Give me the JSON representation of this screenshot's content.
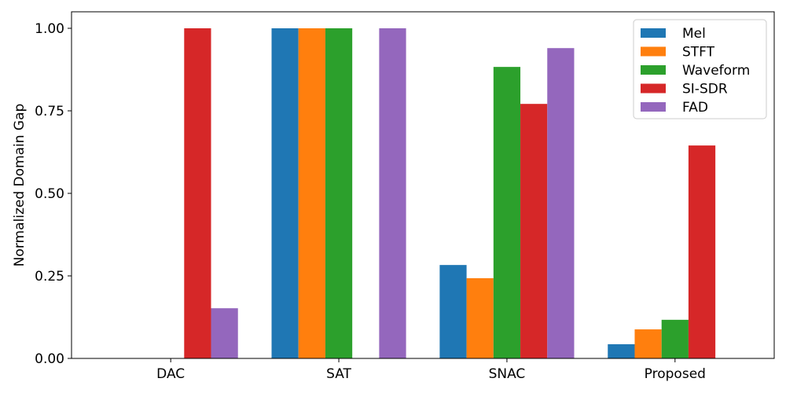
{
  "chart_data": {
    "type": "bar",
    "title": "",
    "xlabel": "",
    "ylabel": "Normalized Domain Gap",
    "ylim": [
      0,
      1.05
    ],
    "yticks": [
      0.0,
      0.25,
      0.5,
      0.75,
      1.0
    ],
    "ytick_labels": [
      "0.00",
      "0.25",
      "0.50",
      "0.75",
      "1.00"
    ],
    "categories": [
      "DAC",
      "SAT",
      "SNAC",
      "Proposed"
    ],
    "legend_position": "top-right",
    "grid": false,
    "series": [
      {
        "name": "Mel",
        "color": "#1f77b4",
        "values": [
          0.0,
          1.0,
          0.283,
          0.043
        ]
      },
      {
        "name": "STFT",
        "color": "#ff7f0e",
        "values": [
          0.0,
          1.0,
          0.243,
          0.088
        ]
      },
      {
        "name": "Waveform",
        "color": "#2ca02c",
        "values": [
          0.0,
          1.0,
          0.883,
          0.117
        ]
      },
      {
        "name": "SI-SDR",
        "color": "#d62728",
        "values": [
          1.0,
          0.0,
          0.771,
          0.645
        ]
      },
      {
        "name": "FAD",
        "color": "#9467bd",
        "values": [
          0.152,
          1.0,
          0.94,
          0.0
        ]
      }
    ]
  }
}
